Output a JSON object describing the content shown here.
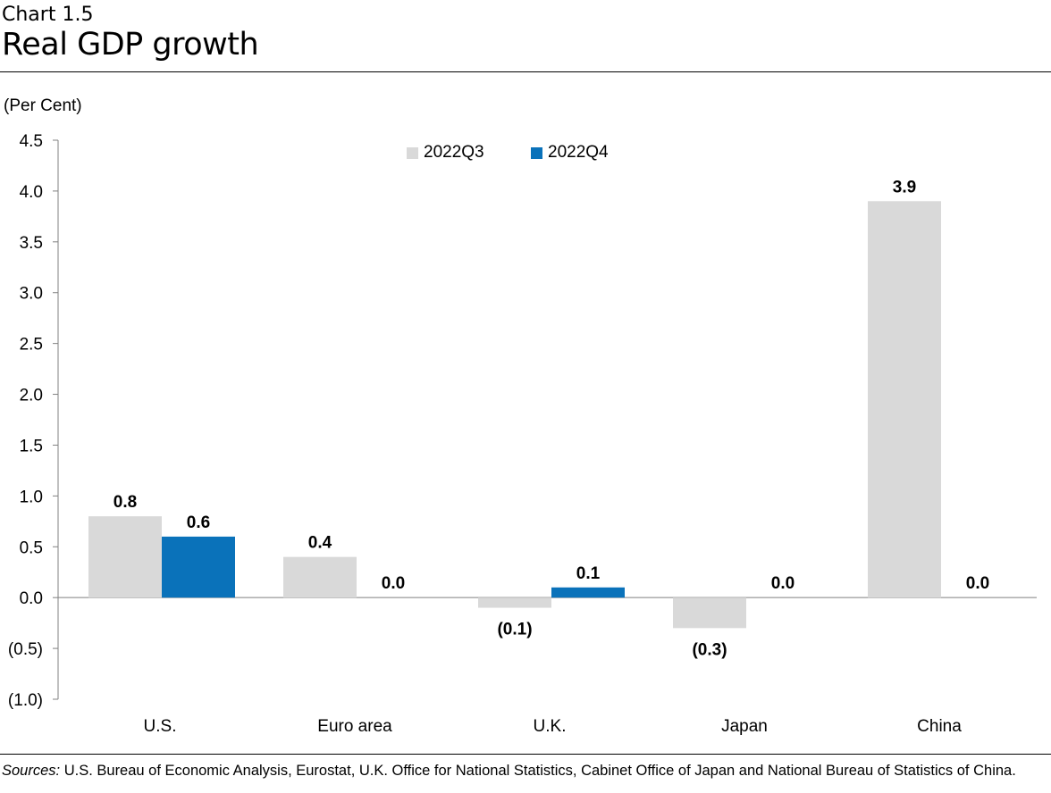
{
  "header": {
    "chart_number": "Chart 1.5",
    "title": "Real GDP growth"
  },
  "unit_label": "(Per Cent)",
  "footer": {
    "sources_label": "Sources:",
    "sources_text": " U.S. Bureau of Economic Analysis, Eurostat, U.K. Office for National Statistics, Cabinet Office of Japan and National Bureau of Statistics of China."
  },
  "colors": {
    "q3": "#d9d9d9",
    "q4": "#0a72ba",
    "axis": "#808080"
  },
  "chart_data": {
    "type": "bar",
    "title": "Real GDP growth",
    "xlabel": "",
    "ylabel": "(Per Cent)",
    "ylim": [
      -1.0,
      4.5
    ],
    "y_ticks": [
      4.5,
      4.0,
      3.5,
      3.0,
      2.5,
      2.0,
      1.5,
      1.0,
      0.5,
      0.0,
      -0.5,
      -1.0
    ],
    "y_tick_labels": [
      "4.5",
      "4.0",
      "3.5",
      "3.0",
      "2.5",
      "2.0",
      "1.5",
      "1.0",
      "0.5",
      "0.0",
      "(0.5)",
      "(1.0)"
    ],
    "categories": [
      "U.S.",
      "Euro area",
      "U.K.",
      "Japan",
      "China"
    ],
    "legend_position": "top-center",
    "series": [
      {
        "name": "2022Q3",
        "values": [
          0.8,
          0.4,
          -0.1,
          -0.3,
          3.9
        ],
        "labels": [
          "0.8",
          "0.4",
          "(0.1)",
          "(0.3)",
          "3.9"
        ]
      },
      {
        "name": "2022Q4",
        "values": [
          0.6,
          0.0,
          0.1,
          0.0,
          0.0
        ],
        "labels": [
          "0.6",
          "0.0",
          "0.1",
          "0.0",
          "0.0"
        ]
      }
    ]
  }
}
